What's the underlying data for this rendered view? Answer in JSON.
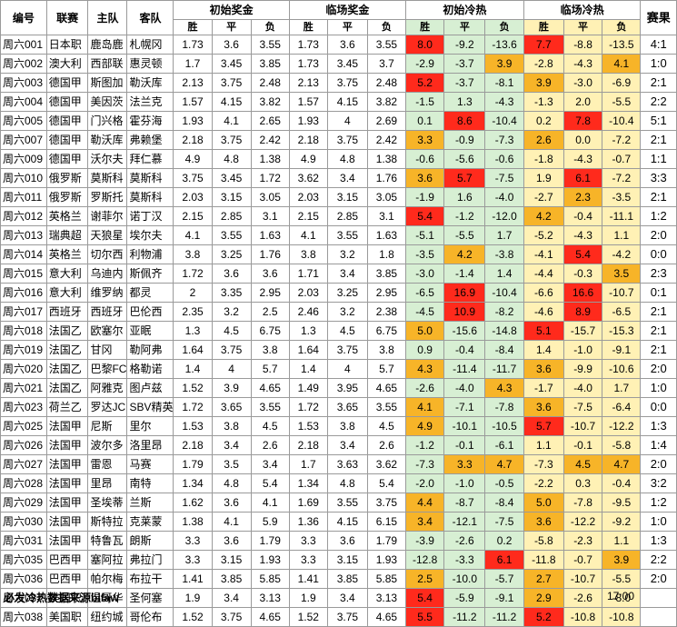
{
  "headers": {
    "id": "编号",
    "league": "联赛",
    "home": "主队",
    "away": "客队",
    "init_odds": "初始奖金",
    "live_odds": "临场奖金",
    "init_heat": "初始冷热",
    "live_heat": "临场冷热",
    "result": "赛果",
    "win": "胜",
    "draw": "平",
    "loss": "负"
  },
  "colors": {
    "red": "#ff2a1c",
    "orange": "#f7b428",
    "green_bg": "#d7efd3",
    "yellow_bg": "#fff1b5"
  },
  "rows": [
    {
      "id": "周六001",
      "league": "日本职",
      "home": "鹿岛鹿",
      "away": "札幌冈",
      "io": [
        "1.73",
        "3.6",
        "3.55"
      ],
      "lo": [
        "1.73",
        "3.6",
        "3.55"
      ],
      "ih": [
        "8.0",
        "-9.2",
        "-13.6"
      ],
      "ihc": [
        "r",
        "",
        ""
      ],
      "lh": [
        "7.7",
        "-8.8",
        "-13.5"
      ],
      "lhc": [
        "r",
        "",
        ""
      ],
      "res": "4:1"
    },
    {
      "id": "周六002",
      "league": "澳大利",
      "home": "西部联",
      "away": "惠灵顿",
      "io": [
        "1.7",
        "3.45",
        "3.85"
      ],
      "lo": [
        "1.73",
        "3.45",
        "3.7"
      ],
      "ih": [
        "-2.9",
        "-3.7",
        "3.9"
      ],
      "ihc": [
        "",
        "",
        "o"
      ],
      "lh": [
        "-2.8",
        "-4.3",
        "4.1"
      ],
      "lhc": [
        "",
        "",
        "o"
      ],
      "res": "1:0"
    },
    {
      "id": "周六003",
      "league": "德国甲",
      "home": "斯图加",
      "away": "勒沃库",
      "io": [
        "2.13",
        "3.75",
        "2.48"
      ],
      "lo": [
        "2.13",
        "3.75",
        "2.48"
      ],
      "ih": [
        "5.2",
        "-3.7",
        "-8.1"
      ],
      "ihc": [
        "r",
        "",
        ""
      ],
      "lh": [
        "3.9",
        "-3.0",
        "-6.9"
      ],
      "lhc": [
        "o",
        "",
        ""
      ],
      "res": "2:1"
    },
    {
      "id": "周六004",
      "league": "德国甲",
      "home": "美因茨",
      "away": "法兰克",
      "io": [
        "1.57",
        "4.15",
        "3.82"
      ],
      "lo": [
        "1.57",
        "4.15",
        "3.82"
      ],
      "ih": [
        "-1.5",
        "1.3",
        "-4.3"
      ],
      "ihc": [
        "",
        "",
        ""
      ],
      "lh": [
        "-1.3",
        "2.0",
        "-5.5"
      ],
      "lhc": [
        "",
        "",
        ""
      ],
      "res": "2:2"
    },
    {
      "id": "周六005",
      "league": "德国甲",
      "home": "门兴格",
      "away": "霍芬海",
      "io": [
        "1.93",
        "4.1",
        "2.65"
      ],
      "lo": [
        "1.93",
        "4",
        "2.69"
      ],
      "ih": [
        "0.1",
        "8.6",
        "-10.4"
      ],
      "ihc": [
        "",
        "r",
        ""
      ],
      "lh": [
        "0.2",
        "7.8",
        "-10.4"
      ],
      "lhc": [
        "",
        "r",
        ""
      ],
      "res": "5:1"
    },
    {
      "id": "周六007",
      "league": "德国甲",
      "home": "勒沃库",
      "away": "弗赖堡",
      "io": [
        "2.18",
        "3.75",
        "2.42"
      ],
      "lo": [
        "2.18",
        "3.75",
        "2.42"
      ],
      "ih": [
        "3.3",
        "-0.9",
        "-7.3"
      ],
      "ihc": [
        "o",
        "",
        ""
      ],
      "lh": [
        "2.6",
        "0.0",
        "-7.2"
      ],
      "lhc": [
        "o",
        "",
        ""
      ],
      "res": "2:1"
    },
    {
      "id": "周六009",
      "league": "德国甲",
      "home": "沃尔夫",
      "away": "拜仁慕",
      "io": [
        "4.9",
        "4.8",
        "1.38"
      ],
      "lo": [
        "4.9",
        "4.8",
        "1.38"
      ],
      "ih": [
        "-0.6",
        "-5.6",
        "-0.6"
      ],
      "ihc": [
        "",
        "",
        ""
      ],
      "lh": [
        "-1.8",
        "-4.3",
        "-0.7"
      ],
      "lhc": [
        "",
        "",
        ""
      ],
      "res": "1:1"
    },
    {
      "id": "周六010",
      "league": "俄罗斯",
      "home": "莫斯科",
      "away": "莫斯科",
      "io": [
        "3.75",
        "3.45",
        "1.72"
      ],
      "lo": [
        "3.62",
        "3.4",
        "1.76"
      ],
      "ih": [
        "3.6",
        "5.7",
        "-7.5"
      ],
      "ihc": [
        "o",
        "r",
        ""
      ],
      "lh": [
        "1.9",
        "6.1",
        "-7.2"
      ],
      "lhc": [
        "",
        "r",
        ""
      ],
      "res": "3:3"
    },
    {
      "id": "周六011",
      "league": "俄罗斯",
      "home": "罗斯托",
      "away": "莫斯科",
      "io": [
        "2.03",
        "3.15",
        "3.05"
      ],
      "lo": [
        "2.03",
        "3.15",
        "3.05"
      ],
      "ih": [
        "-1.9",
        "1.6",
        "-4.0"
      ],
      "ihc": [
        "",
        "",
        ""
      ],
      "lh": [
        "-2.7",
        "2.3",
        "-3.5"
      ],
      "lhc": [
        "",
        "o",
        ""
      ],
      "res": "2:1"
    },
    {
      "id": "周六012",
      "league": "英格兰",
      "home": "谢菲尔",
      "away": "诺丁汉",
      "io": [
        "2.15",
        "2.85",
        "3.1"
      ],
      "lo": [
        "2.15",
        "2.85",
        "3.1"
      ],
      "ih": [
        "5.4",
        "-1.2",
        "-12.0"
      ],
      "ihc": [
        "r",
        "",
        ""
      ],
      "lh": [
        "4.2",
        "-0.4",
        "-11.1"
      ],
      "lhc": [
        "o",
        "",
        ""
      ],
      "res": "1:2"
    },
    {
      "id": "周六013",
      "league": "瑞典超",
      "home": "天狼星",
      "away": "埃尔夫",
      "io": [
        "4.1",
        "3.55",
        "1.63"
      ],
      "lo": [
        "4.1",
        "3.55",
        "1.63"
      ],
      "ih": [
        "-5.1",
        "-5.5",
        "1.7"
      ],
      "ihc": [
        "",
        "",
        ""
      ],
      "lh": [
        "-5.2",
        "-4.3",
        "1.1"
      ],
      "lhc": [
        "",
        "",
        ""
      ],
      "res": "2:0"
    },
    {
      "id": "周六014",
      "league": "英格兰",
      "home": "切尔西",
      "away": "利物浦",
      "io": [
        "3.8",
        "3.25",
        "1.76"
      ],
      "lo": [
        "3.8",
        "3.2",
        "1.8"
      ],
      "ih": [
        "-3.5",
        "4.2",
        "-3.8"
      ],
      "ihc": [
        "",
        "o",
        ""
      ],
      "lh": [
        "-4.1",
        "5.4",
        "-4.2"
      ],
      "lhc": [
        "",
        "r",
        ""
      ],
      "res": "0:0"
    },
    {
      "id": "周六015",
      "league": "意大利",
      "home": "乌迪内",
      "away": "斯佩齐",
      "io": [
        "1.72",
        "3.6",
        "3.6"
      ],
      "lo": [
        "1.71",
        "3.4",
        "3.85"
      ],
      "ih": [
        "-3.0",
        "-1.4",
        "1.4"
      ],
      "ihc": [
        "",
        "",
        ""
      ],
      "lh": [
        "-4.4",
        "-0.3",
        "3.5"
      ],
      "lhc": [
        "",
        "",
        "o"
      ],
      "res": "2:3"
    },
    {
      "id": "周六016",
      "league": "意大利",
      "home": "维罗纳",
      "away": "都灵",
      "io": [
        "2",
        "3.35",
        "2.95"
      ],
      "lo": [
        "2.03",
        "3.25",
        "2.95"
      ],
      "ih": [
        "-6.5",
        "16.9",
        "-10.4"
      ],
      "ihc": [
        "",
        "r",
        ""
      ],
      "lh": [
        "-6.6",
        "16.6",
        "-10.7"
      ],
      "lhc": [
        "",
        "r",
        ""
      ],
      "res": "0:1"
    },
    {
      "id": "周六017",
      "league": "西班牙",
      "home": "西班牙",
      "away": "巴伦西",
      "io": [
        "2.35",
        "3.2",
        "2.5"
      ],
      "lo": [
        "2.46",
        "3.2",
        "2.38"
      ],
      "ih": [
        "-4.5",
        "10.9",
        "-8.2"
      ],
      "ihc": [
        "",
        "r",
        ""
      ],
      "lh": [
        "-4.6",
        "8.9",
        "-6.5"
      ],
      "lhc": [
        "",
        "r",
        ""
      ],
      "res": "2:1"
    },
    {
      "id": "周六018",
      "league": "法国乙",
      "home": "欧塞尔",
      "away": "亚眠",
      "io": [
        "1.3",
        "4.5",
        "6.75"
      ],
      "lo": [
        "1.3",
        "4.5",
        "6.75"
      ],
      "ih": [
        "5.0",
        "-15.6",
        "-14.8"
      ],
      "ihc": [
        "o",
        "",
        ""
      ],
      "lh": [
        "5.1",
        "-15.7",
        "-15.3"
      ],
      "lhc": [
        "r",
        "",
        ""
      ],
      "res": "2:1"
    },
    {
      "id": "周六019",
      "league": "法国乙",
      "home": "甘冈",
      "away": "勒阿弗",
      "io": [
        "1.64",
        "3.75",
        "3.8"
      ],
      "lo": [
        "1.64",
        "3.75",
        "3.8"
      ],
      "ih": [
        "0.9",
        "-0.4",
        "-8.4"
      ],
      "ihc": [
        "",
        "",
        ""
      ],
      "lh": [
        "1.4",
        "-1.0",
        "-9.1"
      ],
      "lhc": [
        "",
        "",
        ""
      ],
      "res": "2:1"
    },
    {
      "id": "周六020",
      "league": "法国乙",
      "home": "巴黎FC",
      "away": "格勒诺",
      "io": [
        "1.4",
        "4",
        "5.7"
      ],
      "lo": [
        "1.4",
        "4",
        "5.7"
      ],
      "ih": [
        "4.3",
        "-11.4",
        "-11.7"
      ],
      "ihc": [
        "o",
        "",
        ""
      ],
      "lh": [
        "3.6",
        "-9.9",
        "-10.6"
      ],
      "lhc": [
        "o",
        "",
        ""
      ],
      "res": "2:0"
    },
    {
      "id": "周六021",
      "league": "法国乙",
      "home": "阿雅克",
      "away": "图卢兹",
      "io": [
        "1.52",
        "3.9",
        "4.65"
      ],
      "lo": [
        "1.49",
        "3.95",
        "4.65"
      ],
      "ih": [
        "-2.6",
        "-4.0",
        "4.3"
      ],
      "ihc": [
        "",
        "",
        "o"
      ],
      "lh": [
        "-1.7",
        "-4.0",
        "1.7"
      ],
      "lhc": [
        "",
        "",
        ""
      ],
      "res": "1:0"
    },
    {
      "id": "周六023",
      "league": "荷兰乙",
      "home": "罗达JC",
      "away": "SBV精英",
      "io": [
        "1.72",
        "3.65",
        "3.55"
      ],
      "lo": [
        "1.72",
        "3.65",
        "3.55"
      ],
      "ih": [
        "4.1",
        "-7.1",
        "-7.8"
      ],
      "ihc": [
        "o",
        "",
        ""
      ],
      "lh": [
        "3.6",
        "-7.5",
        "-6.4"
      ],
      "lhc": [
        "o",
        "",
        ""
      ],
      "res": "0:0"
    },
    {
      "id": "周六025",
      "league": "法国甲",
      "home": "尼斯",
      "away": "里尔",
      "io": [
        "1.53",
        "3.8",
        "4.5"
      ],
      "lo": [
        "1.53",
        "3.8",
        "4.5"
      ],
      "ih": [
        "4.9",
        "-10.1",
        "-10.5"
      ],
      "ihc": [
        "o",
        "",
        ""
      ],
      "lh": [
        "5.7",
        "-10.7",
        "-12.2"
      ],
      "lhc": [
        "r",
        "",
        ""
      ],
      "res": "1:3"
    },
    {
      "id": "周六026",
      "league": "法国甲",
      "home": "波尔多",
      "away": "洛里昂",
      "io": [
        "2.18",
        "3.4",
        "2.6"
      ],
      "lo": [
        "2.18",
        "3.4",
        "2.6"
      ],
      "ih": [
        "-1.2",
        "-0.1",
        "-6.1"
      ],
      "ihc": [
        "",
        "",
        ""
      ],
      "lh": [
        "1.1",
        "-0.1",
        "-5.8"
      ],
      "lhc": [
        "",
        "",
        ""
      ],
      "res": "1:4"
    },
    {
      "id": "周六027",
      "league": "法国甲",
      "home": "雷恩",
      "away": "马赛",
      "io": [
        "1.79",
        "3.5",
        "3.4"
      ],
      "lo": [
        "1.7",
        "3.63",
        "3.62"
      ],
      "ih": [
        "-7.3",
        "3.3",
        "4.7"
      ],
      "ihc": [
        "",
        "o",
        "o"
      ],
      "lh": [
        "-7.3",
        "4.5",
        "4.7"
      ],
      "lhc": [
        "",
        "o",
        "o"
      ],
      "res": "2:0"
    },
    {
      "id": "周六028",
      "league": "法国甲",
      "home": "里昂",
      "away": "南特",
      "io": [
        "1.34",
        "4.8",
        "5.4"
      ],
      "lo": [
        "1.34",
        "4.8",
        "5.4"
      ],
      "ih": [
        "-2.0",
        "-1.0",
        "-0.5"
      ],
      "ihc": [
        "",
        "",
        ""
      ],
      "lh": [
        "-2.2",
        "0.3",
        "-0.4"
      ],
      "lhc": [
        "",
        "",
        ""
      ],
      "res": "3:2"
    },
    {
      "id": "周六029",
      "league": "法国甲",
      "home": "圣埃蒂",
      "away": "兰斯",
      "io": [
        "1.62",
        "3.6",
        "4.1"
      ],
      "lo": [
        "1.69",
        "3.55",
        "3.75"
      ],
      "ih": [
        "4.4",
        "-8.7",
        "-8.4"
      ],
      "ihc": [
        "o",
        "",
        ""
      ],
      "lh": [
        "5.0",
        "-7.8",
        "-9.5"
      ],
      "lhc": [
        "o",
        "",
        ""
      ],
      "res": "1:2"
    },
    {
      "id": "周六030",
      "league": "法国甲",
      "home": "斯特拉",
      "away": "克莱蒙",
      "io": [
        "1.38",
        "4.1",
        "5.9"
      ],
      "lo": [
        "1.36",
        "4.15",
        "6.15"
      ],
      "ih": [
        "3.4",
        "-12.1",
        "-7.5"
      ],
      "ihc": [
        "o",
        "",
        ""
      ],
      "lh": [
        "3.6",
        "-12.2",
        "-9.2"
      ],
      "lhc": [
        "o",
        "",
        ""
      ],
      "res": "1:0"
    },
    {
      "id": "周六031",
      "league": "法国甲",
      "home": "特鲁瓦",
      "away": "朗斯",
      "io": [
        "3.3",
        "3.6",
        "1.79"
      ],
      "lo": [
        "3.3",
        "3.6",
        "1.79"
      ],
      "ih": [
        "-3.9",
        "-2.6",
        "0.2"
      ],
      "ihc": [
        "",
        "",
        ""
      ],
      "lh": [
        "-5.8",
        "-2.3",
        "1.1"
      ],
      "lhc": [
        "",
        "",
        ""
      ],
      "res": "1:3"
    },
    {
      "id": "周六035",
      "league": "巴西甲",
      "home": "塞阿拉",
      "away": "弗拉门",
      "io": [
        "3.3",
        "3.15",
        "1.93"
      ],
      "lo": [
        "3.3",
        "3.15",
        "1.93"
      ],
      "ih": [
        "-12.8",
        "-3.3",
        "6.1"
      ],
      "ihc": [
        "",
        "",
        "r"
      ],
      "lh": [
        "-11.8",
        "-0.7",
        "3.9"
      ],
      "lhc": [
        "",
        "",
        "o"
      ],
      "res": "2:2"
    },
    {
      "id": "周六036",
      "league": "巴西甲",
      "home": "帕尔梅",
      "away": "布拉干",
      "io": [
        "1.41",
        "3.85",
        "5.85"
      ],
      "lo": [
        "1.41",
        "3.85",
        "5.85"
      ],
      "ih": [
        "2.5",
        "-10.0",
        "-5.7"
      ],
      "ihc": [
        "o",
        "",
        ""
      ],
      "lh": [
        "2.7",
        "-10.7",
        "-5.5"
      ],
      "lhc": [
        "o",
        "",
        ""
      ],
      "res": "2:0"
    },
    {
      "id": "周六037",
      "league": "美国职",
      "home": "温哥华",
      "away": "圣何塞",
      "io": [
        "1.9",
        "3.4",
        "3.13"
      ],
      "lo": [
        "1.9",
        "3.4",
        "3.13"
      ],
      "ih": [
        "5.4",
        "-5.9",
        "-9.1"
      ],
      "ihc": [
        "r",
        "",
        ""
      ],
      "lh": [
        "2.9",
        "-2.6",
        "-8.0"
      ],
      "lhc": [
        "o",
        "",
        ""
      ],
      "res": ""
    },
    {
      "id": "周六038",
      "league": "美国职",
      "home": "纽约城",
      "away": "哥伦布",
      "io": [
        "1.52",
        "3.75",
        "4.65"
      ],
      "lo": [
        "1.52",
        "3.75",
        "4.65"
      ],
      "ih": [
        "5.5",
        "-11.2",
        "-11.2"
      ],
      "ihc": [
        "r",
        "",
        ""
      ],
      "lh": [
        "5.2",
        "-10.8",
        "-10.8"
      ],
      "lhc": [
        "r",
        "",
        ""
      ],
      "res": ""
    }
  ],
  "footer": {
    "source": "必发冷热数据来源bifaw",
    "time": "17:00"
  }
}
